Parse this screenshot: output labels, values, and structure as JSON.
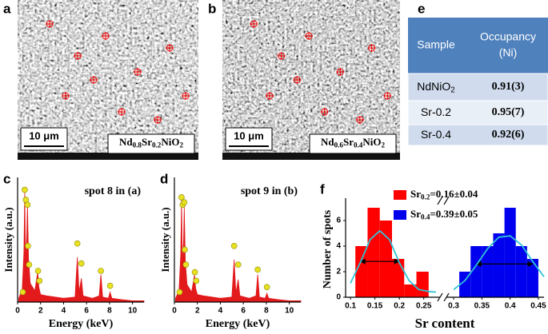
{
  "images": [
    {
      "label": "a",
      "scale_bar": "10 μm",
      "formula": [
        "Nd",
        "0.8",
        "Sr",
        "0.2",
        "NiO",
        "2"
      ]
    },
    {
      "label": "b",
      "scale_bar": "10 μm",
      "formula": [
        "Nd",
        "0.6",
        "Sr",
        "0.4",
        "NiO",
        "2"
      ]
    }
  ],
  "table": {
    "label": "e",
    "header": [
      "Sample",
      [
        "Occupancy",
        "(Ni)"
      ]
    ],
    "rows": [
      [
        [
          "NdNiO",
          "2"
        ],
        "0.91(3)"
      ],
      [
        [
          "Sr-0.2"
        ],
        "0.95(7)"
      ],
      [
        [
          "Sr-0.4"
        ],
        "0.92(6)"
      ]
    ]
  },
  "chart_data": [
    {
      "type": "area",
      "label": "c",
      "annotation": "spot 8 in (a)",
      "x_label": "Energy (keV)",
      "y_label": "Intensity (a.u.)",
      "xlim": [
        0,
        11
      ],
      "xticks": [
        0,
        2,
        4,
        6,
        8,
        10
      ],
      "ylim": [
        0,
        100
      ],
      "color": "#e31a1c",
      "x": [
        0.1,
        0.4,
        0.55,
        0.62,
        0.7,
        0.8,
        0.86,
        0.95,
        1.1,
        1.5,
        1.75,
        1.85,
        2.0,
        2.5,
        4.0,
        5.0,
        5.2,
        5.35,
        5.55,
        5.7,
        6.5,
        7.1,
        7.25,
        7.4,
        7.9,
        8.05,
        8.2,
        9,
        10,
        11
      ],
      "values": [
        3,
        10,
        40,
        88,
        30,
        55,
        78,
        35,
        15,
        9,
        24,
        12,
        6,
        5,
        3,
        4,
        36,
        8,
        19,
        5,
        3,
        5,
        22,
        4,
        3,
        8,
        3,
        2,
        1,
        1
      ],
      "markers": {
        "color": "#e8e020",
        "x": [
          0.45,
          0.62,
          0.72,
          0.86,
          0.9,
          1.0,
          1.78,
          1.9,
          5.2,
          5.55,
          7.25,
          8.05
        ],
        "values": [
          8,
          90,
          82,
          78,
          45,
          30,
          25,
          17,
          47,
          31,
          25,
          13
        ]
      }
    },
    {
      "type": "area",
      "label": "d",
      "annotation": "spot 9 in (b)",
      "x_label": "Energy (keV)",
      "y_label": "Intensity (a.u.)",
      "xlim": [
        0,
        11
      ],
      "xticks": [
        0,
        2,
        4,
        6,
        8,
        10
      ],
      "ylim": [
        0,
        100
      ],
      "color": "#e31a1c",
      "x": [
        0.1,
        0.4,
        0.55,
        0.62,
        0.7,
        0.8,
        0.86,
        0.95,
        1.1,
        1.5,
        1.75,
        1.85,
        2.0,
        2.5,
        4.0,
        5.0,
        5.2,
        5.35,
        5.55,
        5.7,
        6.5,
        7.1,
        7.25,
        7.4,
        7.9,
        8.05,
        8.2,
        9,
        10,
        11
      ],
      "values": [
        3,
        9,
        38,
        82,
        28,
        50,
        76,
        33,
        14,
        8,
        22,
        11,
        6,
        5,
        3,
        4,
        34,
        7,
        18,
        5,
        3,
        5,
        22,
        4,
        3,
        7,
        3,
        2,
        1,
        1
      ],
      "markers": {
        "color": "#e8e020",
        "x": [
          0.45,
          0.62,
          0.72,
          0.86,
          0.9,
          1.0,
          1.78,
          1.9,
          5.2,
          5.55,
          7.25,
          8.05
        ],
        "values": [
          8,
          84,
          78,
          80,
          42,
          30,
          24,
          17,
          45,
          30,
          26,
          12
        ]
      }
    },
    {
      "type": "histogram",
      "label": "f",
      "x_label": "Sr content",
      "y_label": "Number of spots",
      "ylim": [
        0,
        7.5
      ],
      "yticks": [
        0,
        2,
        4,
        6
      ],
      "xlim": [
        [
          0.09,
          0.28
        ],
        [
          0.29,
          0.46
        ]
      ],
      "xticks": [
        [
          0.1,
          0.15,
          0.2,
          0.25
        ],
        [
          0.3,
          0.35,
          0.4,
          0.45
        ]
      ],
      "fit_color": "#2ec4d6",
      "series": [
        {
          "name": [
            "Sr",
            "0.2",
            "=0.16±0.04"
          ],
          "color": "#ff0000",
          "bins": [
            0.11,
            0.135,
            0.16,
            0.185,
            0.21,
            0.235,
            0.26
          ],
          "values": [
            4,
            7,
            6,
            3,
            1,
            2
          ],
          "fit": {
            "x": [
              0.1,
              0.12,
              0.14,
              0.16,
              0.18,
              0.2,
              0.22,
              0.24,
              0.26,
              0.275
            ],
            "values": [
              1.1,
              2.7,
              4.5,
              5.2,
              4.5,
              2.7,
              1.3,
              0.6,
              0.45,
              0.4
            ]
          },
          "fwhm": {
            "x": [
              0.12,
              0.2
            ],
            "y": 2.8
          }
        },
        {
          "name": [
            "Sr",
            "0.4",
            "=0.39±0.05"
          ],
          "color": "#0000ee",
          "bins": [
            0.31,
            0.33,
            0.35,
            0.37,
            0.39,
            0.41,
            0.43,
            0.45
          ],
          "values": [
            2,
            4,
            4,
            5,
            7,
            4,
            3
          ],
          "fit": {
            "x": [
              0.3,
              0.32,
              0.34,
              0.36,
              0.38,
              0.4,
              0.42,
              0.44,
              0.46
            ],
            "values": [
              0.6,
              1.3,
              2.5,
              3.8,
              4.7,
              4.8,
              4.1,
              2.8,
              1.6
            ]
          },
          "fwhm": {
            "x": [
              0.34,
              0.44
            ],
            "y": 2.6
          }
        }
      ]
    }
  ]
}
